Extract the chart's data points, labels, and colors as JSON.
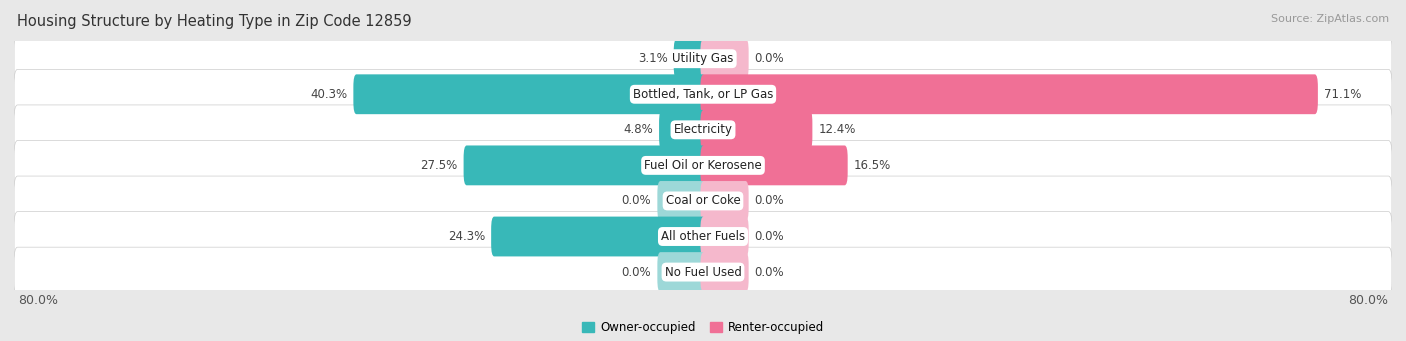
{
  "title": "Housing Structure by Heating Type in Zip Code 12859",
  "source": "Source: ZipAtlas.com",
  "categories": [
    "Utility Gas",
    "Bottled, Tank, or LP Gas",
    "Electricity",
    "Fuel Oil or Kerosene",
    "Coal or Coke",
    "All other Fuels",
    "No Fuel Used"
  ],
  "owner_values": [
    3.1,
    40.3,
    4.8,
    27.5,
    0.0,
    24.3,
    0.0
  ],
  "renter_values": [
    0.0,
    71.1,
    12.4,
    16.5,
    0.0,
    0.0,
    0.0
  ],
  "owner_color": "#38b8b8",
  "renter_color": "#f07096",
  "owner_color_light": "#9dd8d8",
  "renter_color_light": "#f5b8cc",
  "bg_color": "#e8e8e8",
  "row_bg": "#f5f5f5",
  "max_val": 80.0,
  "stub_val": 5.0,
  "title_fontsize": 10.5,
  "source_fontsize": 8,
  "label_fontsize": 8.5,
  "val_fontsize": 8.5,
  "axis_fontsize": 9
}
